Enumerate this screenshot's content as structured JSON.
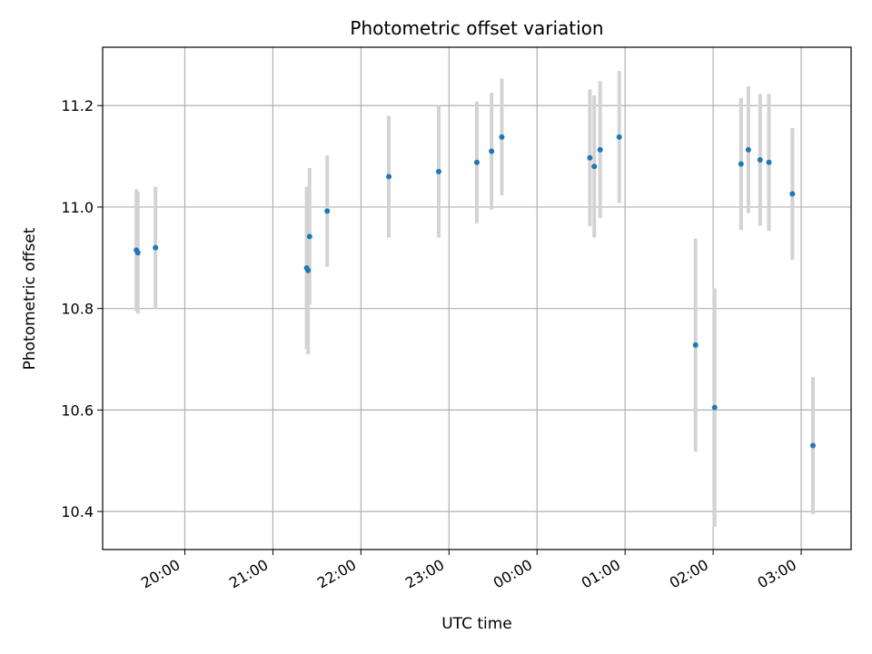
{
  "chart_data": {
    "type": "scatter",
    "title": "Photometric offset variation",
    "xlabel": "UTC time",
    "ylabel": "Photometric offset",
    "grid": true,
    "xlim": [
      "19:04",
      "03:34"
    ],
    "ylim": [
      10.325,
      11.315
    ],
    "x_ticks": [
      "20:00",
      "21:00",
      "22:00",
      "23:00",
      "00:00",
      "01:00",
      "02:00",
      "03:00"
    ],
    "y_ticks": [
      "10.4",
      "10.6",
      "10.8",
      "11.0",
      "11.2"
    ],
    "point_color": "#1f77b4",
    "errorbar_color": "#d3d3d3",
    "points": [
      {
        "x": "19:27",
        "y": 10.915,
        "err": 0.12
      },
      {
        "x": "19:28",
        "y": 10.91,
        "err": 0.12
      },
      {
        "x": "19:40",
        "y": 10.92,
        "err": 0.12
      },
      {
        "x": "21:23",
        "y": 10.88,
        "err": 0.16
      },
      {
        "x": "21:24",
        "y": 10.875,
        "err": 0.165
      },
      {
        "x": "21:25",
        "y": 10.942,
        "err": 0.135
      },
      {
        "x": "21:37",
        "y": 10.992,
        "err": 0.11
      },
      {
        "x": "22:19",
        "y": 11.06,
        "err": 0.12
      },
      {
        "x": "22:53",
        "y": 11.07,
        "err": 0.13
      },
      {
        "x": "23:19",
        "y": 11.088,
        "err": 0.12
      },
      {
        "x": "23:29",
        "y": 11.11,
        "err": 0.115
      },
      {
        "x": "23:36",
        "y": 11.138,
        "err": 0.115
      },
      {
        "x": "00:36",
        "y": 11.097,
        "err": 0.135
      },
      {
        "x": "00:39",
        "y": 11.08,
        "err": 0.14
      },
      {
        "x": "00:43",
        "y": 11.113,
        "err": 0.135
      },
      {
        "x": "00:56",
        "y": 11.138,
        "err": 0.13
      },
      {
        "x": "01:48",
        "y": 10.728,
        "err": 0.21
      },
      {
        "x": "02:01",
        "y": 10.605,
        "err": 0.235
      },
      {
        "x": "02:19",
        "y": 11.085,
        "err": 0.13
      },
      {
        "x": "02:24",
        "y": 11.113,
        "err": 0.125
      },
      {
        "x": "02:32",
        "y": 11.093,
        "err": 0.13
      },
      {
        "x": "02:38",
        "y": 11.088,
        "err": 0.135
      },
      {
        "x": "02:54",
        "y": 11.026,
        "err": 0.13
      },
      {
        "x": "03:08",
        "y": 10.53,
        "err": 0.135
      }
    ]
  }
}
